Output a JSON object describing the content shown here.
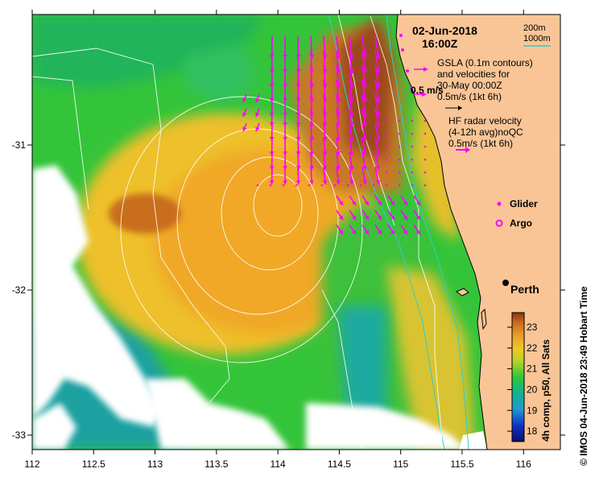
{
  "map": {
    "date": "02-Jun-2018",
    "time": "16:00Z",
    "x_ticks": [
      "112",
      "112.5",
      "113",
      "113.5",
      "114",
      "114.5",
      "115",
      "115.5",
      "116"
    ],
    "y_ticks": [
      "-31",
      "-32",
      "-33"
    ],
    "lon_range": [
      112,
      116.3
    ],
    "lat_range": [
      -33.1,
      -30.1
    ]
  },
  "legend": {
    "depth_200": "200m",
    "depth_1000": "1000m",
    "gsla_line1": "GSLA (0.1m contours)",
    "gsla_line2": "and velocities for",
    "gsla_line3": "30-May 00:00Z",
    "gsla_scale": "0.5m/s (1kt 6h)",
    "vel_label": "0.5 m/s",
    "hf_line1": "HF radar velocity",
    "hf_line2": "(4-12h avg)noQC",
    "hf_scale": "0.5m/s (1kt 6h)",
    "glider": "Glider",
    "argo": "Argo",
    "city": "Perth"
  },
  "colorbar": {
    "min": 17.5,
    "max": 23.7,
    "ticks": [
      "23",
      "22",
      "21",
      "20",
      "19",
      "18"
    ],
    "label": "4h comp, p50, All Sats"
  },
  "credit": "© IMOS 04-Jun-2018 23:49 Hobart Time",
  "colors": {
    "land": "#f9c596",
    "vector": "#ff00ff",
    "bathy": "#33cccc",
    "contour": "#ffffff"
  }
}
